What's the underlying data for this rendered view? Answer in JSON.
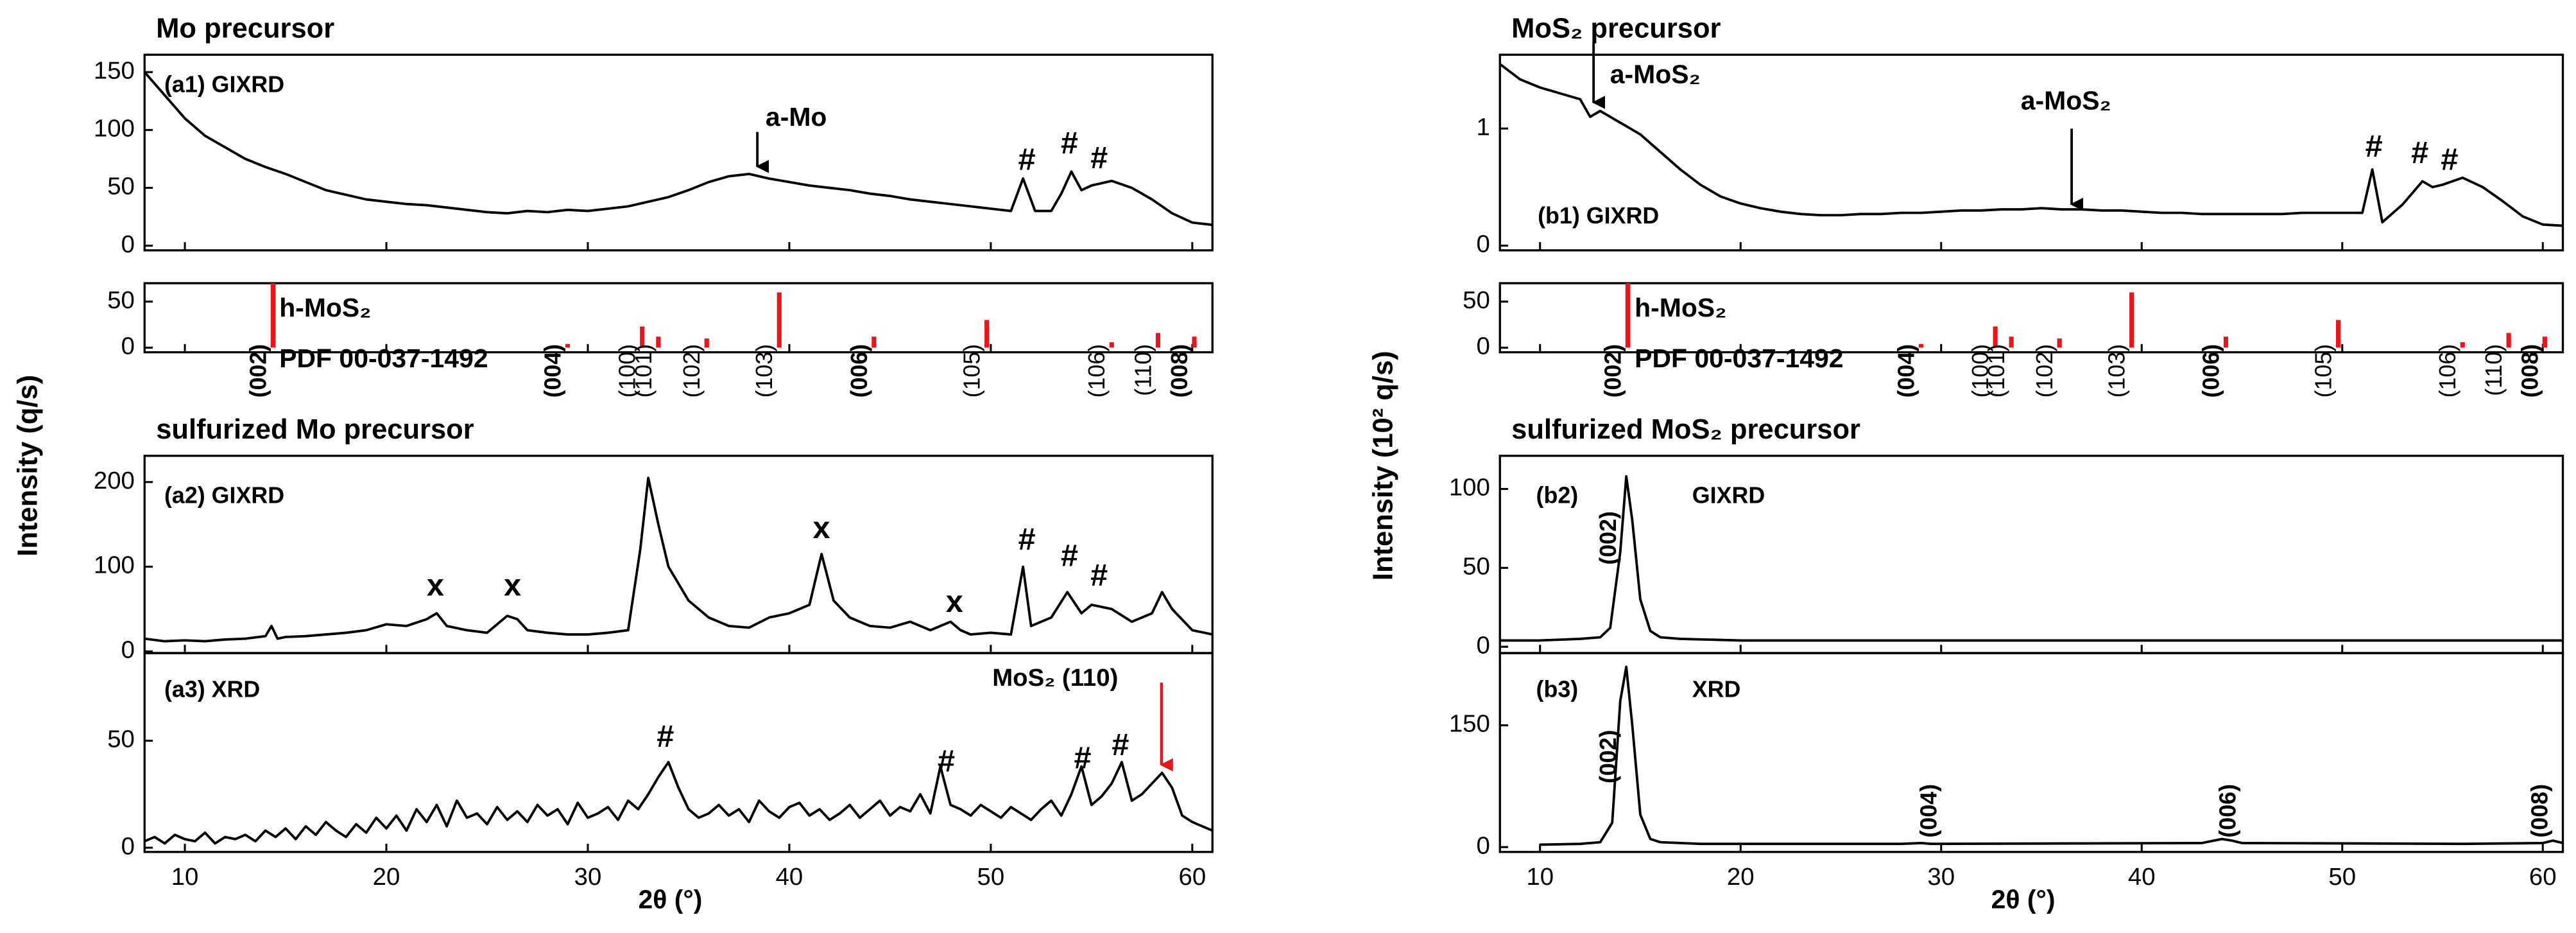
{
  "chart_data": [
    {
      "type": "line",
      "title": "Mo precursor",
      "ylabel": "Intensity (q/s)",
      "color": "#000000",
      "xlim": [
        8,
        61
      ],
      "ylim": [
        -4,
        165
      ],
      "xticks": [
        10,
        20,
        30,
        40,
        50,
        60
      ],
      "yticks": [
        0,
        50,
        100,
        150
      ],
      "annotations": [
        "(a1) GIXRD",
        "a-Mo",
        "#",
        "#",
        "#"
      ],
      "x": [
        8,
        9,
        10,
        11,
        12,
        13,
        14,
        15,
        16,
        17,
        18,
        19,
        20,
        21,
        22,
        23,
        24,
        25,
        26,
        27,
        28,
        29,
        30,
        31,
        32,
        33,
        34,
        35,
        36,
        37,
        38,
        39,
        40,
        41,
        42,
        43,
        44,
        45,
        46,
        47,
        48,
        49,
        50,
        51,
        51.6,
        52.2,
        53,
        53.5,
        54,
        54.5,
        55,
        56,
        57,
        58,
        59,
        60,
        61
      ],
      "values": [
        150,
        130,
        110,
        95,
        85,
        75,
        68,
        62,
        55,
        48,
        44,
        40,
        38,
        36,
        35,
        33,
        31,
        29,
        28,
        30,
        29,
        31,
        30,
        32,
        34,
        38,
        42,
        48,
        55,
        60,
        62,
        58,
        55,
        52,
        50,
        48,
        45,
        43,
        40,
        38,
        36,
        34,
        32,
        30,
        58,
        30,
        30,
        45,
        64,
        48,
        52,
        56,
        50,
        40,
        28,
        20,
        18
      ]
    },
    {
      "type": "stem",
      "color": "#e8161b",
      "xlim": [
        8,
        61
      ],
      "ylim": [
        -5,
        70
      ],
      "xticks": [
        10,
        20,
        30,
        40,
        50,
        60
      ],
      "yticks": [
        0,
        50
      ],
      "annotations": [
        "h-MoS₂",
        "PDF 00-037-1492"
      ],
      "categories": [
        "(002)",
        "(004)",
        "(100)",
        "(101)",
        "(102)",
        "(103)",
        "(006)",
        "(105)",
        "(106)",
        "(110)",
        "(008)"
      ],
      "x": [
        14.38,
        29.0,
        32.7,
        33.5,
        35.9,
        39.5,
        44.2,
        49.8,
        56.0,
        58.3,
        60.1
      ],
      "values": [
        100,
        4,
        23,
        12,
        10,
        60,
        12,
        30,
        6,
        16,
        12
      ]
    },
    {
      "type": "line",
      "title": "sulfurized Mo precursor",
      "color": "#000000",
      "xlim": [
        8,
        61
      ],
      "ylim": [
        -2,
        231
      ],
      "xticks": [
        10,
        20,
        30,
        40,
        50,
        60
      ],
      "yticks": [
        0,
        100,
        200
      ],
      "annotations": [
        "(a2) GIXRD",
        "x",
        "x",
        "x",
        "x",
        "#",
        "#",
        "#"
      ],
      "x": [
        8,
        9,
        10,
        11,
        12,
        13,
        14,
        14.3,
        14.6,
        15,
        16,
        17,
        18,
        19,
        20,
        21,
        22,
        22.5,
        23,
        24,
        25,
        26,
        26.5,
        27,
        28,
        29,
        30,
        31,
        32,
        32.6,
        33,
        33.5,
        34,
        35,
        36,
        37,
        38,
        39,
        40,
        41,
        41.6,
        42.2,
        43,
        44,
        45,
        46,
        47,
        48,
        48.5,
        49,
        50,
        51,
        51.6,
        52,
        53,
        53.8,
        54.5,
        55,
        56,
        57,
        58,
        58.5,
        59,
        60,
        61
      ],
      "values": [
        15,
        12,
        13,
        12,
        14,
        15,
        18,
        30,
        15,
        17,
        18,
        20,
        22,
        25,
        32,
        30,
        38,
        45,
        30,
        25,
        22,
        42,
        38,
        25,
        22,
        20,
        20,
        22,
        25,
        120,
        205,
        150,
        100,
        60,
        40,
        30,
        28,
        40,
        45,
        55,
        115,
        60,
        40,
        30,
        28,
        35,
        25,
        35,
        25,
        20,
        22,
        20,
        100,
        30,
        40,
        70,
        45,
        55,
        50,
        35,
        45,
        70,
        50,
        25,
        20
      ]
    },
    {
      "type": "line",
      "xlabel": "2θ (°)",
      "color": "#000000",
      "xlim": [
        8,
        61
      ],
      "ylim": [
        -2,
        91
      ],
      "xticks": [
        10,
        20,
        30,
        40,
        50,
        60
      ],
      "yticks": [
        0,
        50
      ],
      "annotations": [
        "(a3) XRD",
        "#",
        "#",
        "#",
        "#",
        "MoS₂ (110)"
      ],
      "x": [
        8,
        8.5,
        9,
        9.5,
        10,
        10.5,
        11,
        11.5,
        12,
        12.5,
        13,
        13.5,
        14,
        14.5,
        15,
        15.5,
        16,
        16.5,
        17,
        17.5,
        18,
        18.5,
        19,
        19.5,
        20,
        20.5,
        21,
        21.5,
        22,
        22.5,
        23,
        23.5,
        24,
        24.5,
        25,
        25.5,
        26,
        26.5,
        27,
        27.5,
        28,
        28.5,
        29,
        29.5,
        30,
        30.5,
        31,
        31.5,
        32,
        32.5,
        33,
        33.5,
        34,
        34.5,
        35,
        35.5,
        36,
        36.5,
        37,
        37.5,
        38,
        38.5,
        39,
        39.5,
        40,
        40.5,
        41,
        41.5,
        42,
        42.5,
        43,
        43.5,
        44,
        44.5,
        45,
        45.5,
        46,
        46.5,
        47,
        47.5,
        48,
        48.5,
        49,
        49.5,
        50,
        50.5,
        51,
        51.5,
        52,
        52.5,
        53,
        53.5,
        54,
        54.5,
        55,
        55.5,
        56,
        56.5,
        57,
        57.5,
        58,
        58.5,
        59,
        59.5,
        60,
        60.5,
        61
      ],
      "values": [
        3,
        5,
        2,
        6,
        4,
        3,
        7,
        2,
        5,
        4,
        6,
        3,
        8,
        5,
        9,
        4,
        10,
        6,
        12,
        8,
        5,
        11,
        7,
        14,
        9,
        15,
        8,
        18,
        12,
        20,
        10,
        22,
        14,
        16,
        11,
        19,
        13,
        17,
        12,
        20,
        15,
        18,
        11,
        21,
        14,
        16,
        19,
        13,
        22,
        18,
        25,
        33,
        40,
        28,
        18,
        14,
        16,
        20,
        15,
        18,
        12,
        22,
        17,
        14,
        19,
        21,
        15,
        18,
        13,
        16,
        20,
        14,
        18,
        22,
        15,
        19,
        17,
        25,
        16,
        38,
        20,
        18,
        15,
        20,
        17,
        14,
        19,
        16,
        13,
        18,
        22,
        15,
        25,
        38,
        20,
        24,
        30,
        40,
        22,
        25,
        30,
        35,
        28,
        15,
        12,
        10,
        8
      ]
    },
    {
      "type": "line",
      "title": "MoS₂ precursor",
      "ylabel": "Intensity (10² q/s)",
      "color": "#000000",
      "xlim": [
        8,
        61
      ],
      "ylim": [
        -0.04,
        1.63
      ],
      "xticks": [
        10,
        20,
        30,
        40,
        50,
        60
      ],
      "yticks": [
        0,
        1
      ],
      "annotations": [
        "a-MoS₂",
        "a-MoS₂",
        "(b1) GIXRD",
        "#",
        "#",
        "#"
      ],
      "x": [
        8,
        9,
        10,
        11,
        12,
        12.5,
        13,
        14,
        15,
        16,
        17,
        18,
        19,
        20,
        21,
        22,
        23,
        24,
        25,
        26,
        27,
        28,
        29,
        30,
        31,
        32,
        33,
        34,
        35,
        36,
        37,
        38,
        39,
        40,
        41,
        42,
        43,
        44,
        45,
        46,
        47,
        48,
        49,
        50,
        51,
        51.5,
        52,
        53,
        54,
        54.5,
        55,
        56,
        57,
        58,
        59,
        60,
        61
      ],
      "values": [
        1.55,
        1.42,
        1.35,
        1.3,
        1.25,
        1.1,
        1.15,
        1.05,
        0.95,
        0.8,
        0.65,
        0.52,
        0.42,
        0.36,
        0.32,
        0.29,
        0.27,
        0.26,
        0.26,
        0.27,
        0.27,
        0.28,
        0.28,
        0.29,
        0.3,
        0.3,
        0.31,
        0.31,
        0.32,
        0.31,
        0.31,
        0.3,
        0.3,
        0.29,
        0.28,
        0.28,
        0.27,
        0.27,
        0.27,
        0.27,
        0.27,
        0.28,
        0.28,
        0.28,
        0.28,
        0.65,
        0.2,
        0.35,
        0.55,
        0.5,
        0.52,
        0.58,
        0.5,
        0.38,
        0.25,
        0.18,
        0.17
      ]
    },
    {
      "type": "stem",
      "color": "#e8161b",
      "xlim": [
        8,
        61
      ],
      "ylim": [
        -5,
        70
      ],
      "xticks": [
        10,
        20,
        30,
        40,
        50,
        60
      ],
      "yticks": [
        0,
        50
      ],
      "annotations": [
        "h-MoS₂",
        "PDF 00-037-1492"
      ],
      "categories": [
        "(002)",
        "(004)",
        "(100)",
        "(101)",
        "(102)",
        "(103)",
        "(006)",
        "(105)",
        "(106)",
        "(110)",
        "(008)"
      ],
      "x": [
        14.38,
        29.0,
        32.7,
        33.5,
        35.9,
        39.5,
        44.2,
        49.8,
        56.0,
        58.3,
        60.1
      ],
      "values": [
        100,
        4,
        23,
        12,
        10,
        60,
        12,
        30,
        6,
        16,
        12
      ]
    },
    {
      "type": "line",
      "title": "sulfurized MoS₂ precursor",
      "color": "#000000",
      "xlim": [
        8,
        61
      ],
      "ylim": [
        -4,
        121
      ],
      "xticks": [
        10,
        20,
        30,
        40,
        50,
        60
      ],
      "yticks": [
        0,
        50,
        100
      ],
      "annotations": [
        "(b2)",
        "GIXRD",
        "(002)"
      ],
      "x": [
        8,
        10,
        12,
        13,
        13.5,
        14,
        14.3,
        14.6,
        15,
        15.5,
        16,
        17,
        20,
        30,
        40,
        50,
        60,
        61
      ],
      "values": [
        4,
        4,
        5,
        6,
        12,
        60,
        108,
        80,
        30,
        10,
        6,
        5,
        4,
        4,
        4,
        4,
        4,
        4
      ]
    },
    {
      "type": "line",
      "xlabel": "2θ (°)",
      "color": "#000000",
      "xlim": [
        8,
        61
      ],
      "ylim": [
        -6,
        239
      ],
      "xticks": [
        10,
        20,
        30,
        40,
        50,
        60
      ],
      "yticks": [
        0,
        150
      ],
      "annotations": [
        "(b3)",
        "XRD",
        "(002)",
        "(004)",
        "(006)",
        "(008)"
      ],
      "x": [
        10,
        12,
        13,
        13.6,
        14,
        14.3,
        14.6,
        15,
        15.5,
        16,
        18,
        28,
        29,
        29.5,
        43,
        44,
        44.5,
        45,
        56,
        60,
        60.5,
        61
      ],
      "values": [
        3,
        4,
        6,
        30,
        180,
        222,
        150,
        40,
        10,
        6,
        4,
        4,
        5,
        4,
        5,
        10,
        8,
        5,
        4,
        5,
        8,
        5
      ]
    }
  ]
}
